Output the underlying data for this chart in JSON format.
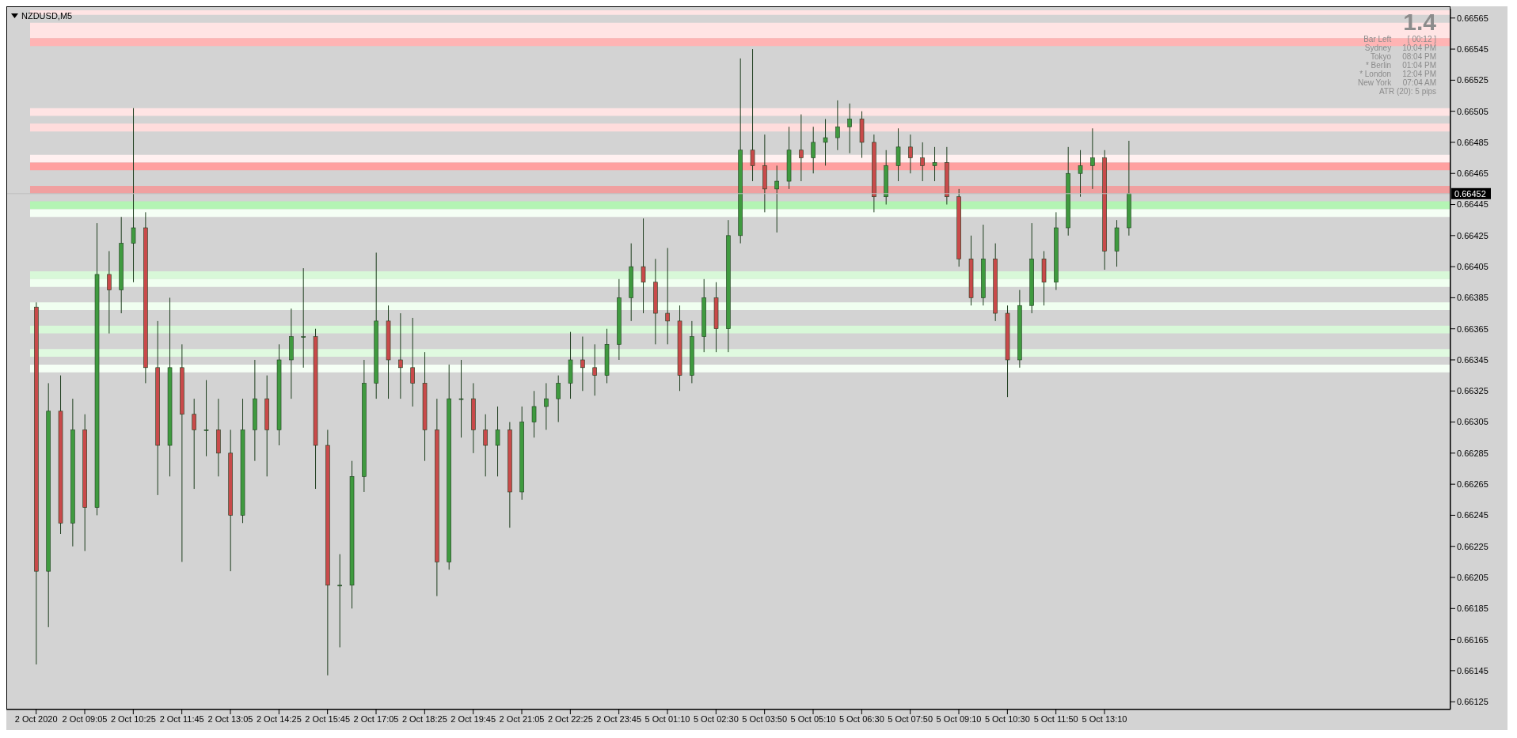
{
  "chart_data": {
    "type": "candlestick",
    "title": "NZDUSD,M5",
    "categories": [
      "2 Oct 2020",
      null,
      null,
      null,
      "2 Oct 09:05",
      null,
      null,
      null,
      "2 Oct 10:25",
      null,
      null,
      null,
      "2 Oct 11:45",
      null,
      null,
      null,
      "2 Oct 13:05",
      null,
      null,
      null,
      "2 Oct 14:25",
      null,
      null,
      null,
      "2 Oct 15:45",
      null,
      null,
      null,
      "2 Oct 17:05",
      null,
      null,
      null,
      "2 Oct 18:25",
      null,
      null,
      null,
      "2 Oct 19:45",
      null,
      null,
      null,
      "2 Oct 21:05",
      null,
      null,
      null,
      "2 Oct 22:25",
      null,
      null,
      null,
      "2 Oct 23:45",
      null,
      null,
      null,
      "5 Oct 01:10",
      null,
      null,
      null,
      "5 Oct 02:30",
      null,
      null,
      null,
      "5 Oct 03:50",
      null,
      null,
      null,
      "5 Oct 05:10",
      null,
      null,
      null,
      "5 Oct 06:30",
      null,
      null,
      null,
      "5 Oct 07:50",
      null,
      null,
      null,
      "5 Oct 09:10",
      null,
      null,
      null,
      "5 Oct 10:30",
      null,
      null,
      null,
      "5 Oct 11:50",
      null,
      null,
      null,
      "5 Oct 13:10",
      null,
      null,
      null,
      null,
      null,
      null,
      null,
      null,
      null,
      null,
      null,
      null,
      null,
      null,
      null,
      null,
      null,
      null,
      null,
      null,
      null,
      null,
      null,
      null,
      null,
      null,
      null,
      null
    ],
    "ohlc": [
      [
        0.66379,
        0.66382,
        0.66149,
        0.66209
      ],
      [
        0.66209,
        0.6633,
        0.66173,
        0.66312
      ],
      [
        0.66312,
        0.66335,
        0.66233,
        0.6624
      ],
      [
        0.6624,
        0.6632,
        0.66225,
        0.663
      ],
      [
        0.663,
        0.6631,
        0.66222,
        0.6625
      ],
      [
        0.6625,
        0.66433,
        0.66245,
        0.664
      ],
      [
        0.664,
        0.66415,
        0.66362,
        0.6639
      ],
      [
        0.6639,
        0.66437,
        0.66375,
        0.6642
      ],
      [
        0.6642,
        0.66507,
        0.66395,
        0.6643
      ],
      [
        0.6643,
        0.6644,
        0.6633,
        0.6634
      ],
      [
        0.6634,
        0.6637,
        0.66258,
        0.6629
      ],
      [
        0.6629,
        0.66385,
        0.6627,
        0.6634
      ],
      [
        0.6634,
        0.66355,
        0.66215,
        0.6631
      ],
      [
        0.6631,
        0.6632,
        0.66262,
        0.663
      ],
      [
        0.663,
        0.66332,
        0.66283,
        0.663
      ],
      [
        0.663,
        0.6632,
        0.6627,
        0.66285
      ],
      [
        0.66285,
        0.663,
        0.66209,
        0.66245
      ],
      [
        0.66245,
        0.6632,
        0.6624,
        0.663
      ],
      [
        0.663,
        0.66345,
        0.6628,
        0.6632
      ],
      [
        0.6632,
        0.66335,
        0.6627,
        0.663
      ],
      [
        0.663,
        0.66355,
        0.6629,
        0.66345
      ],
      [
        0.66345,
        0.66378,
        0.6632,
        0.6636
      ],
      [
        0.6636,
        0.66404,
        0.6634,
        0.6636
      ],
      [
        0.6636,
        0.66365,
        0.66262,
        0.6629
      ],
      [
        0.6629,
        0.663,
        0.66142,
        0.662
      ],
      [
        0.662,
        0.6622,
        0.6616,
        0.662
      ],
      [
        0.662,
        0.6628,
        0.66185,
        0.6627
      ],
      [
        0.6627,
        0.66345,
        0.6626,
        0.6633
      ],
      [
        0.6633,
        0.66414,
        0.6632,
        0.6637
      ],
      [
        0.6637,
        0.6638,
        0.6632,
        0.66345
      ],
      [
        0.66345,
        0.66375,
        0.6632,
        0.6634
      ],
      [
        0.6634,
        0.66372,
        0.66315,
        0.6633
      ],
      [
        0.6633,
        0.6635,
        0.6628,
        0.663
      ],
      [
        0.663,
        0.6632,
        0.66193,
        0.66215
      ],
      [
        0.66215,
        0.66342,
        0.6621,
        0.6632
      ],
      [
        0.6632,
        0.66345,
        0.66295,
        0.6632
      ],
      [
        0.6632,
        0.6633,
        0.66285,
        0.663
      ],
      [
        0.663,
        0.6631,
        0.6627,
        0.6629
      ],
      [
        0.6629,
        0.66315,
        0.6627,
        0.663
      ],
      [
        0.663,
        0.66305,
        0.66237,
        0.6626
      ],
      [
        0.6626,
        0.66315,
        0.66255,
        0.66305
      ],
      [
        0.66305,
        0.66325,
        0.66295,
        0.66315
      ],
      [
        0.66315,
        0.6633,
        0.663,
        0.6632
      ],
      [
        0.6632,
        0.66335,
        0.66305,
        0.6633
      ],
      [
        0.6633,
        0.66363,
        0.6632,
        0.66345
      ],
      [
        0.66345,
        0.6636,
        0.66325,
        0.6634
      ],
      [
        0.6634,
        0.66355,
        0.66322,
        0.66335
      ],
      [
        0.66335,
        0.66365,
        0.6633,
        0.66355
      ],
      [
        0.66355,
        0.66397,
        0.66345,
        0.66385
      ],
      [
        0.66385,
        0.6642,
        0.6637,
        0.66405
      ],
      [
        0.66405,
        0.66436,
        0.66375,
        0.66395
      ],
      [
        0.66395,
        0.6641,
        0.66355,
        0.66375
      ],
      [
        0.66375,
        0.66417,
        0.66355,
        0.6637
      ],
      [
        0.6637,
        0.6638,
        0.66325,
        0.66335
      ],
      [
        0.66335,
        0.6637,
        0.6633,
        0.6636
      ],
      [
        0.6636,
        0.66397,
        0.6635,
        0.66385
      ],
      [
        0.66385,
        0.66395,
        0.6635,
        0.66365
      ],
      [
        0.66365,
        0.66435,
        0.6635,
        0.66425
      ],
      [
        0.66425,
        0.66539,
        0.6642,
        0.6648
      ],
      [
        0.6648,
        0.66545,
        0.6646,
        0.6647
      ],
      [
        0.6647,
        0.6649,
        0.6644,
        0.66455
      ],
      [
        0.66455,
        0.6647,
        0.66427,
        0.6646
      ],
      [
        0.6646,
        0.66495,
        0.66455,
        0.6648
      ],
      [
        0.6648,
        0.66503,
        0.6646,
        0.66475
      ],
      [
        0.66475,
        0.66495,
        0.66465,
        0.66485
      ],
      [
        0.66485,
        0.665,
        0.6647,
        0.66488
      ],
      [
        0.66488,
        0.66512,
        0.6648,
        0.66495
      ],
      [
        0.66495,
        0.6651,
        0.66478,
        0.665
      ],
      [
        0.665,
        0.66505,
        0.66475,
        0.66485
      ],
      [
        0.66485,
        0.6649,
        0.6644,
        0.6645
      ],
      [
        0.6645,
        0.6648,
        0.66445,
        0.6647
      ],
      [
        0.6647,
        0.66494,
        0.6646,
        0.66482
      ],
      [
        0.66482,
        0.6649,
        0.66465,
        0.66475
      ],
      [
        0.66475,
        0.66485,
        0.6646,
        0.6647
      ],
      [
        0.6647,
        0.66482,
        0.6646,
        0.66472
      ],
      [
        0.66472,
        0.66482,
        0.66445,
        0.6645
      ],
      [
        0.6645,
        0.66455,
        0.66405,
        0.6641
      ],
      [
        0.6641,
        0.66425,
        0.6638,
        0.66385
      ],
      [
        0.66385,
        0.66432,
        0.6638,
        0.6641
      ],
      [
        0.6641,
        0.6642,
        0.6637,
        0.66375
      ],
      [
        0.66375,
        0.6638,
        0.66321,
        0.66345
      ],
      [
        0.66345,
        0.6639,
        0.6634,
        0.6638
      ],
      [
        0.6638,
        0.66433,
        0.66375,
        0.6641
      ],
      [
        0.6641,
        0.66415,
        0.6638,
        0.66395
      ],
      [
        0.66395,
        0.6644,
        0.6639,
        0.6643
      ],
      [
        0.6643,
        0.66482,
        0.66425,
        0.66465
      ],
      [
        0.66465,
        0.6648,
        0.6645,
        0.6647
      ],
      [
        0.6647,
        0.66494,
        0.66455,
        0.66475
      ],
      [
        0.66475,
        0.6648,
        0.66403,
        0.66415
      ],
      [
        0.66415,
        0.66435,
        0.66405,
        0.6643
      ],
      [
        0.6643,
        0.66486,
        0.66425,
        0.66452
      ],
      null,
      null,
      null,
      null,
      null,
      null,
      null,
      null,
      null,
      null,
      null,
      null,
      null,
      null,
      null,
      null,
      null,
      null,
      null,
      null,
      null,
      null,
      null,
      null,
      null,
      null
    ],
    "ylim": [
      0.6612,
      0.66571
    ],
    "yticks": [
      0.66125,
      0.66145,
      0.66165,
      0.66185,
      0.66205,
      0.66225,
      0.66245,
      0.66265,
      0.66285,
      0.66305,
      0.66325,
      0.66345,
      0.66365,
      0.66385,
      0.66405,
      0.66425,
      0.66445,
      0.66465,
      0.66485,
      0.66505,
      0.66525,
      0.66545,
      0.66565
    ],
    "grid": false,
    "legend": false,
    "ref_lines": [
      {
        "axis": "y",
        "value": 0.66452,
        "label": "0.66452",
        "color": "#c0c0c0"
      }
    ],
    "bands": [
      {
        "axis": "y",
        "from": 0.66567,
        "to": 0.6657,
        "color": "#ffe4e4"
      },
      {
        "axis": "y",
        "from": 0.66552,
        "to": 0.66562,
        "color": "#ffe4e4"
      },
      {
        "axis": "y",
        "from": 0.66547,
        "to": 0.66552,
        "color": "#ffb4b4"
      },
      {
        "axis": "y",
        "from": 0.66502,
        "to": 0.66507,
        "color": "#ffe4e4"
      },
      {
        "axis": "y",
        "from": 0.66492,
        "to": 0.66497,
        "color": "#ffdcdc"
      },
      {
        "axis": "y",
        "from": 0.66472,
        "to": 0.66477,
        "color": "#fff0f0"
      },
      {
        "axis": "y",
        "from": 0.66467,
        "to": 0.66472,
        "color": "#ffa0a0"
      },
      {
        "axis": "y",
        "from": 0.66452,
        "to": 0.66457,
        "color": "#f0a0a0"
      },
      {
        "axis": "y",
        "from": 0.66442,
        "to": 0.66447,
        "color": "#b4f4b4"
      },
      {
        "axis": "y",
        "from": 0.66437,
        "to": 0.66442,
        "color": "#f5fff5"
      },
      {
        "axis": "y",
        "from": 0.66397,
        "to": 0.66402,
        "color": "#d8f8d8"
      },
      {
        "axis": "y",
        "from": 0.66392,
        "to": 0.66397,
        "color": "#f0fff0"
      },
      {
        "axis": "y",
        "from": 0.66377,
        "to": 0.66382,
        "color": "#f0fff0"
      },
      {
        "axis": "y",
        "from": 0.66362,
        "to": 0.66367,
        "color": "#d8f8d8"
      },
      {
        "axis": "y",
        "from": 0.66347,
        "to": 0.66352,
        "color": "#e0fae0"
      },
      {
        "axis": "y",
        "from": 0.66337,
        "to": 0.66342,
        "color": "#f5fff5"
      }
    ],
    "annotations": [
      "1.4",
      "Bar Left",
      "[ 00:12 ]",
      "Sydney",
      "10:04 PM",
      "Tokyo",
      "08:04 PM",
      "* Berlin",
      "01:04 PM",
      "* London",
      "12:04 PM",
      "New York",
      "07:04 AM",
      "ATR (20): 5 pips"
    ]
  }
}
